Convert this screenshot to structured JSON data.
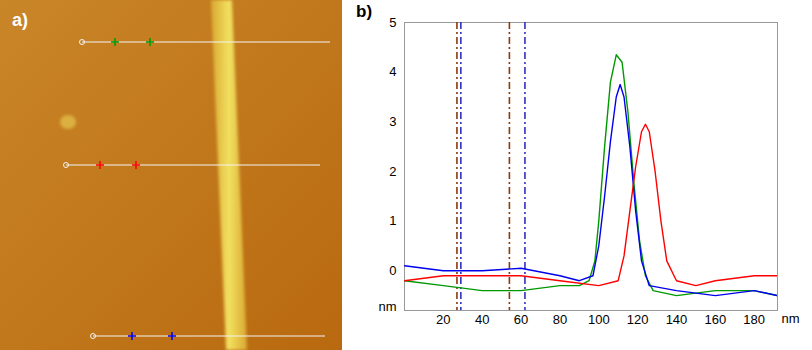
{
  "image": {
    "label": "a)"
  },
  "chart_data": {
    "type": "line",
    "panel_label": "b)",
    "x_label": "nm",
    "y_label": "nm",
    "xlim": [
      0,
      192
    ],
    "ylim": [
      -0.8,
      5
    ],
    "xticks": [
      20,
      40,
      60,
      80,
      100,
      120,
      140,
      160,
      180
    ],
    "yticks": [
      0,
      1,
      2,
      3,
      4,
      5
    ],
    "grid": false,
    "series": [
      {
        "color": "#009900",
        "x": [
          0,
          20,
          40,
          60,
          80,
          90,
          95,
          98,
          100,
          103,
          106,
          109,
          112,
          115,
          118,
          121,
          124,
          128,
          140,
          160,
          180,
          192
        ],
        "values": [
          -0.2,
          -0.3,
          -0.4,
          -0.4,
          -0.3,
          -0.3,
          -0.2,
          0.2,
          1.0,
          2.5,
          3.8,
          4.35,
          4.2,
          3.2,
          1.8,
          0.6,
          -0.1,
          -0.4,
          -0.5,
          -0.4,
          -0.4,
          -0.5
        ]
      },
      {
        "color": "#0000ee",
        "x": [
          0,
          20,
          40,
          60,
          80,
          90,
          97,
          100,
          103,
          106,
          109,
          111,
          113,
          116,
          119,
          122,
          126,
          140,
          160,
          180,
          192
        ],
        "values": [
          0.1,
          0.0,
          0.0,
          0.05,
          -0.1,
          -0.2,
          -0.1,
          0.5,
          1.5,
          2.6,
          3.5,
          3.75,
          3.5,
          2.5,
          1.2,
          0.2,
          -0.3,
          -0.4,
          -0.5,
          -0.4,
          -0.5
        ]
      },
      {
        "color": "#ff0000",
        "x": [
          0,
          20,
          40,
          60,
          80,
          100,
          110,
          113,
          116,
          119,
          122,
          124,
          126,
          129,
          132,
          135,
          140,
          150,
          160,
          180,
          192
        ],
        "values": [
          -0.2,
          -0.1,
          -0.1,
          -0.1,
          -0.2,
          -0.3,
          -0.2,
          0.3,
          1.2,
          2.1,
          2.8,
          2.95,
          2.8,
          2.0,
          1.0,
          0.2,
          -0.2,
          -0.3,
          -0.2,
          -0.1,
          -0.1
        ]
      }
    ],
    "cursors": [
      {
        "x": 27,
        "color": "#8b3a0a",
        "line_style": "dashdot"
      },
      {
        "x": 29,
        "color": "#3030c0",
        "line_style": "dashdot"
      },
      {
        "x": 54,
        "color": "#8b3a0a",
        "line_style": "dashdot"
      },
      {
        "x": 62,
        "color": "#3030c0",
        "line_style": "dashdot"
      }
    ]
  }
}
